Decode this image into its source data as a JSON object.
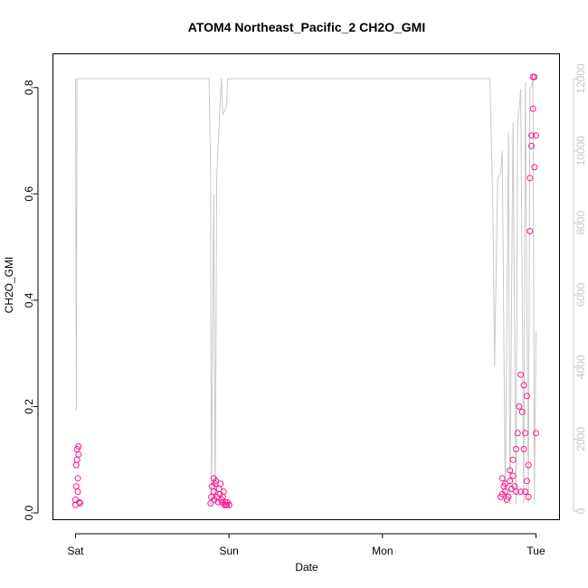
{
  "chart_data": {
    "type": "scatter",
    "title": "ATOM4 Northeast_Pacific_2 CH2O_GMI",
    "xlabel": "Date",
    "ylabel": "CH2O_GMI",
    "x_ticks": [
      "Sat",
      "Sun",
      "Mon",
      "Tue"
    ],
    "xlim_days": [
      -0.15,
      3.15
    ],
    "ylim": [
      0,
      0.82
    ],
    "y_ticks": [
      "0.0",
      "0.2",
      "0.4",
      "0.6",
      "0.8"
    ],
    "y2_ticks": [
      "0",
      "2000",
      "4000",
      "6000",
      "8000",
      "10000",
      "12000"
    ],
    "y2lim": [
      0,
      12000
    ],
    "grid": false,
    "colors": {
      "points": "#ff1493",
      "altitude_line": "#c8c8c8",
      "axis": "#000000",
      "right_axis": "#c8c8c8"
    },
    "series": [
      {
        "marker": "open-circle",
        "x": [
          0.0,
          0.0,
          0.005,
          0.005,
          0.01,
          0.01,
          0.015,
          0.015,
          0.02,
          0.02,
          0.025,
          0.03,
          0.88,
          0.885,
          0.89,
          0.9,
          0.9,
          0.905,
          0.91,
          0.915,
          0.92,
          0.93,
          0.935,
          0.94,
          0.945,
          0.95,
          0.955,
          0.96,
          0.965,
          0.97,
          0.975,
          0.98,
          0.985,
          0.99,
          1.0,
          1.0,
          2.77,
          2.78,
          2.78,
          2.79,
          2.8,
          2.8,
          2.81,
          2.82,
          2.83,
          2.83,
          2.84,
          2.85,
          2.85,
          2.86,
          2.87,
          2.87,
          2.88,
          2.89,
          2.9,
          2.9,
          2.91,
          2.92,
          2.92,
          2.93,
          2.93,
          2.94,
          2.94,
          2.95,
          2.95,
          2.96,
          2.96,
          2.97,
          2.97,
          2.98,
          2.98,
          2.99,
          2.99,
          3.0,
          3.0
        ],
        "y": [
          0.015,
          0.025,
          0.05,
          0.09,
          0.1,
          0.12,
          0.04,
          0.065,
          0.11,
          0.125,
          0.02,
          0.018,
          0.018,
          0.03,
          0.05,
          0.065,
          0.04,
          0.025,
          0.055,
          0.06,
          0.03,
          0.02,
          0.045,
          0.035,
          0.055,
          0.025,
          0.02,
          0.03,
          0.04,
          0.015,
          0.02,
          0.015,
          0.015,
          0.02,
          0.015,
          0.015,
          0.03,
          0.065,
          0.035,
          0.05,
          0.04,
          0.055,
          0.025,
          0.03,
          0.08,
          0.06,
          0.045,
          0.1,
          0.07,
          0.05,
          0.12,
          0.04,
          0.15,
          0.2,
          0.26,
          0.04,
          0.19,
          0.24,
          0.12,
          0.15,
          0.04,
          0.22,
          0.06,
          0.09,
          0.03,
          0.53,
          0.63,
          0.69,
          0.71,
          0.82,
          0.76,
          0.82,
          0.65,
          0.71,
          0.15
        ]
      }
    ],
    "altitude_path": {
      "x": [
        0.0,
        0.005,
        0.01,
        0.015,
        0.02,
        0.5,
        0.87,
        0.88,
        0.885,
        0.9,
        0.91,
        0.92,
        0.95,
        0.96,
        0.97,
        0.98,
        0.985,
        0.99,
        0.995,
        1.0,
        2.0,
        2.7,
        2.72,
        2.73,
        2.75,
        2.77,
        2.78,
        2.8,
        2.82,
        2.83,
        2.85,
        2.87,
        2.88,
        2.9,
        2.92,
        2.93,
        2.95,
        2.96,
        2.97,
        2.98,
        2.99,
        3.0
      ],
      "y": [
        12000,
        2800,
        12000,
        12000,
        12000,
        12000,
        12000,
        9500,
        200,
        8800,
        200,
        9300,
        12000,
        11000,
        11100,
        11200,
        11300,
        12000,
        12000,
        12000,
        12000,
        12000,
        8200,
        4000,
        9200,
        9400,
        10000,
        200,
        10500,
        200,
        10800,
        200,
        10700,
        11700,
        200,
        11900,
        200,
        11700,
        11800,
        12000,
        200,
        5000
      ]
    }
  }
}
